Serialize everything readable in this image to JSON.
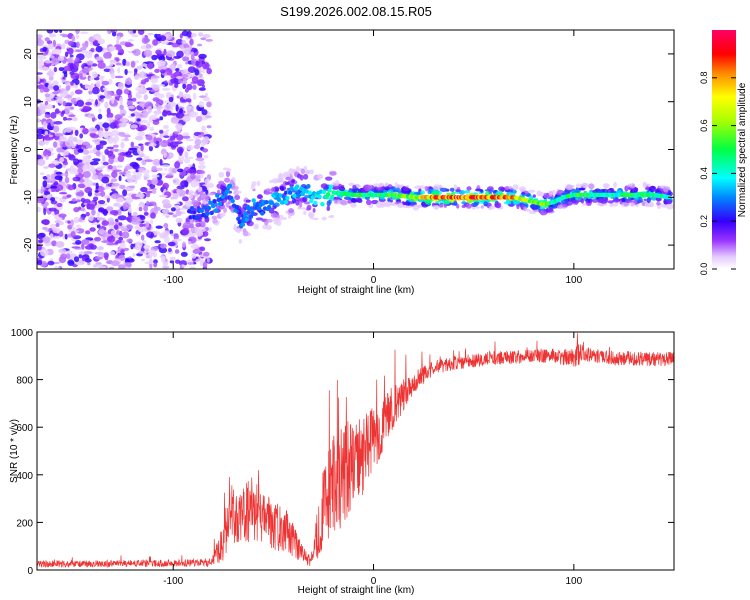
{
  "title": "S199.2026.002.08.15.R05",
  "colors": {
    "snr_line": "#ee3333",
    "axis": "#000000"
  },
  "chart_data": [
    {
      "type": "heatmap",
      "title": "S199.2026.002.08.15.R05",
      "xlabel": "Height of straight line (km)",
      "ylabel": "Frequency (Hz)",
      "xlim": [
        -168,
        150
      ],
      "ylim": [
        -25,
        25
      ],
      "xticks": [
        -100,
        0,
        100
      ],
      "xtick_labels": [
        "-100",
        "0",
        "100"
      ],
      "yticks": [
        -20,
        -10,
        0,
        10,
        20
      ],
      "ytick_labels": [
        "-20",
        "-10",
        "0",
        "10",
        "20"
      ],
      "colorbar": {
        "label": "Normalized spectral amplitude",
        "range": [
          0,
          1
        ],
        "ticks": [
          0.0,
          0.2,
          0.4,
          0.6,
          0.8
        ],
        "tick_labels": [
          "0.0",
          "0.2",
          "0.4",
          "0.6",
          "0.8"
        ]
      },
      "noise_region_x": [
        -168,
        -82
      ],
      "ridge": {
        "x": [
          -92,
          -80,
          -72,
          -66,
          -60,
          -55,
          -50,
          -45,
          -40,
          -35,
          -30,
          -25,
          -20,
          -10,
          0,
          10,
          20,
          30,
          50,
          70,
          80,
          85,
          90,
          95,
          100,
          110,
          120,
          130,
          140,
          148
        ],
        "freq": [
          -14,
          -12,
          -8,
          -15,
          -12,
          -12,
          -11,
          -10,
          -9,
          -8,
          -10,
          -10,
          -9,
          -9.5,
          -9.5,
          -9.5,
          -10,
          -10,
          -10,
          -10,
          -11,
          -11.5,
          -11,
          -10,
          -9.5,
          -9.5,
          -9.5,
          -9.5,
          -9.5,
          -10
        ],
        "amp": [
          0.25,
          0.3,
          0.3,
          0.3,
          0.35,
          0.3,
          0.35,
          0.35,
          0.35,
          0.35,
          0.4,
          0.45,
          0.5,
          0.55,
          0.5,
          0.6,
          0.65,
          0.9,
          0.95,
          0.85,
          0.6,
          0.7,
          0.5,
          0.45,
          0.55,
          0.5,
          0.45,
          0.55,
          0.5,
          0.45
        ]
      }
    },
    {
      "type": "line",
      "xlabel": "Height of straight line (km)",
      "ylabel": "SNR (10 * v/v)",
      "xlim": [
        -168,
        150
      ],
      "ylim": [
        0,
        1000
      ],
      "xticks": [
        -100,
        0,
        100
      ],
      "xtick_labels": [
        "-100",
        "0",
        "100"
      ],
      "yticks": [
        0,
        200,
        400,
        600,
        800,
        1000
      ],
      "ytick_labels": [
        "0",
        "200",
        "400",
        "600",
        "800",
        "1000"
      ],
      "series": [
        {
          "name": "SNR",
          "x": [
            -168,
            -140,
            -110,
            -85,
            -80,
            -75,
            -72,
            -68,
            -64,
            -60,
            -56,
            -52,
            -48,
            -44,
            -40,
            -36,
            -32,
            -30,
            -27,
            -24,
            -20,
            -15,
            -10,
            -5,
            0,
            5,
            10,
            15,
            20,
            25,
            30,
            40,
            50,
            60,
            70,
            80,
            90,
            100,
            102,
            105,
            110,
            120,
            130,
            140,
            150
          ],
          "mean": [
            25,
            25,
            28,
            30,
            40,
            120,
            250,
            200,
            230,
            260,
            220,
            200,
            180,
            170,
            120,
            70,
            40,
            60,
            200,
            300,
            350,
            400,
            450,
            480,
            560,
            600,
            680,
            740,
            790,
            820,
            850,
            870,
            880,
            890,
            895,
            900,
            900,
            890,
            900,
            910,
            900,
            890,
            890,
            885,
            890
          ],
          "noise": [
            15,
            15,
            15,
            15,
            30,
            80,
            150,
            110,
            130,
            150,
            120,
            110,
            100,
            90,
            70,
            40,
            25,
            40,
            150,
            180,
            220,
            220,
            200,
            160,
            140,
            120,
            100,
            70,
            50,
            40,
            30,
            30,
            30,
            30,
            30,
            30,
            30,
            40,
            60,
            30,
            30,
            30,
            30,
            30,
            30
          ]
        }
      ]
    }
  ]
}
